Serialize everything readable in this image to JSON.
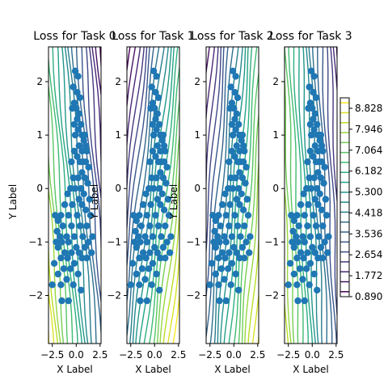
{
  "chart_data": {
    "type": "scatter",
    "subplots": [
      {
        "title": "Loss for Task 0",
        "xlabel": "X Label",
        "ylabel": "Y Label",
        "contour_angle": -0.45
      },
      {
        "title": "Loss for Task 1",
        "xlabel": "X Label",
        "ylabel": "Y Label",
        "contour_angle": 0.65
      },
      {
        "title": "Loss for Task 2",
        "xlabel": "X Label",
        "ylabel": "Y Label",
        "contour_angle": 0.45
      },
      {
        "title": "Loss for Task 3",
        "xlabel": "X Label",
        "ylabel": "",
        "contour_angle": -0.25
      }
    ],
    "xlim": [
      -2.9,
      2.6
    ],
    "ylim": [
      -2.9,
      2.65
    ],
    "xticks": [
      "−2.5",
      "0.0",
      "2.5"
    ],
    "xtick_values": [
      -2.5,
      0.0,
      2.5
    ],
    "yticks": [
      "−2",
      "−1",
      "0",
      "1",
      "2"
    ],
    "ytick_values": [
      -2,
      -1,
      0,
      1,
      2
    ],
    "colorbar": {
      "ticks": [
        "0.890",
        "1.772",
        "2.654",
        "3.536",
        "4.418",
        "5.300",
        "6.182",
        "7.064",
        "7.946",
        "8.828"
      ],
      "tick_values": [
        0.89,
        1.772,
        2.654,
        3.536,
        4.418,
        5.3,
        6.182,
        7.064,
        7.946,
        8.828
      ],
      "range": [
        0.89,
        9.27
      ],
      "levels": 20,
      "colormap": "viridis"
    },
    "scatter_color": "#1f77b4",
    "points": [
      [
        -0.1,
        2.2
      ],
      [
        0.2,
        2.1
      ],
      [
        -0.3,
        1.9
      ],
      [
        0.1,
        1.8
      ],
      [
        -0.2,
        1.6
      ],
      [
        0.4,
        1.7
      ],
      [
        -0.4,
        1.5
      ],
      [
        0.0,
        1.5
      ],
      [
        0.3,
        1.4
      ],
      [
        0.1,
        1.3
      ],
      [
        -0.2,
        1.2
      ],
      [
        0.5,
        1.2
      ],
      [
        0.2,
        1.1
      ],
      [
        0.6,
        1.0
      ],
      [
        0.9,
        1.0
      ],
      [
        -0.1,
        1.0
      ],
      [
        0.8,
        0.9
      ],
      [
        1.0,
        0.8
      ],
      [
        0.6,
        0.7
      ],
      [
        0.3,
        0.8
      ],
      [
        1.1,
        0.7
      ],
      [
        -0.2,
        0.7
      ],
      [
        0.7,
        0.5
      ],
      [
        1.0,
        0.5
      ],
      [
        0.4,
        0.5
      ],
      [
        0.1,
        0.6
      ],
      [
        1.3,
        0.4
      ],
      [
        -0.5,
        0.5
      ],
      [
        0.6,
        0.3
      ],
      [
        0.9,
        0.2
      ],
      [
        0.2,
        0.2
      ],
      [
        -0.3,
        0.2
      ],
      [
        1.2,
        0.1
      ],
      [
        0.5,
        0.0
      ],
      [
        -0.1,
        0.0
      ],
      [
        0.8,
        -0.1
      ],
      [
        -0.6,
        0.0
      ],
      [
        1.4,
        -0.2
      ],
      [
        -0.9,
        -0.1
      ],
      [
        0.3,
        -0.2
      ],
      [
        -1.2,
        -0.3
      ],
      [
        -0.4,
        -0.3
      ],
      [
        0.6,
        -0.3
      ],
      [
        1.0,
        -0.4
      ],
      [
        -1.6,
        -0.5
      ],
      [
        -2.2,
        -0.5
      ],
      [
        -1.9,
        -0.6
      ],
      [
        -0.8,
        -0.5
      ],
      [
        0.1,
        -0.5
      ],
      [
        1.5,
        -0.5
      ],
      [
        -2.0,
        -0.8
      ],
      [
        -1.4,
        -0.7
      ],
      [
        -0.5,
        -0.7
      ],
      [
        0.4,
        -0.7
      ],
      [
        1.1,
        -0.7
      ],
      [
        -1.7,
        -0.9
      ],
      [
        -1.0,
        -0.9
      ],
      [
        -0.2,
        -0.9
      ],
      [
        0.7,
        -0.9
      ],
      [
        1.7,
        -0.9
      ],
      [
        -2.1,
        -1.0
      ],
      [
        -1.5,
        -1.0
      ],
      [
        -0.8,
        -1.0
      ],
      [
        0.0,
        -1.1
      ],
      [
        0.9,
        -1.1
      ],
      [
        1.3,
        -1.0
      ],
      [
        -1.9,
        -1.1
      ],
      [
        -1.2,
        -1.2
      ],
      [
        -0.5,
        -1.2
      ],
      [
        0.3,
        -1.2
      ],
      [
        1.6,
        -1.2
      ],
      [
        -1.6,
        -1.3
      ],
      [
        -0.9,
        -1.3
      ],
      [
        -0.2,
        -1.4
      ],
      [
        0.6,
        -1.3
      ],
      [
        1.1,
        -1.3
      ],
      [
        -2.3,
        -1.4
      ],
      [
        -1.3,
        -1.5
      ],
      [
        -0.6,
        -1.5
      ],
      [
        0.2,
        -1.6
      ],
      [
        -1.9,
        -1.6
      ],
      [
        -1.0,
        -1.7
      ],
      [
        -0.3,
        -1.8
      ],
      [
        -2.5,
        -1.8
      ],
      [
        -1.6,
        -1.8
      ],
      [
        0.5,
        -1.9
      ],
      [
        -0.8,
        -2.1
      ],
      [
        -1.5,
        -2.1
      ]
    ]
  }
}
